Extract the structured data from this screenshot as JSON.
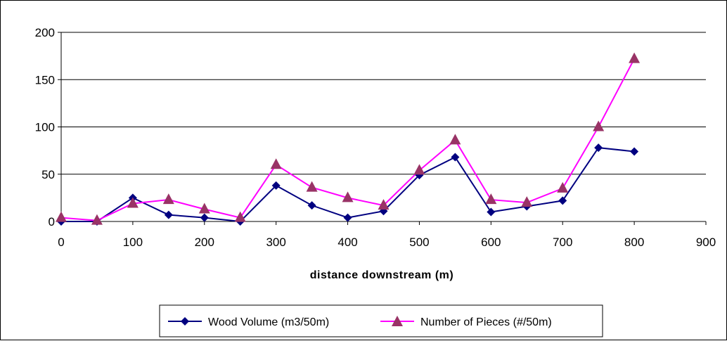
{
  "chart_data": {
    "type": "line",
    "title": "",
    "xlabel": "distance downstream (m)",
    "ylabel": "",
    "xlim": [
      0,
      900
    ],
    "ylim": [
      0,
      200
    ],
    "xticks": [
      0,
      100,
      200,
      300,
      400,
      500,
      600,
      700,
      800,
      900
    ],
    "yticks": [
      0,
      50,
      100,
      150,
      200
    ],
    "grid": "horizontal",
    "legend": "bottom",
    "x": [
      0,
      50,
      100,
      150,
      200,
      250,
      300,
      350,
      400,
      450,
      500,
      550,
      600,
      650,
      700,
      750,
      800
    ],
    "series": [
      {
        "name": "Wood Volume (m3/50m)",
        "color": "#000080",
        "marker": "diamond",
        "values": [
          0,
          0,
          25,
          7,
          4,
          0,
          38,
          17,
          4,
          11,
          49,
          68,
          10,
          16,
          22,
          78,
          74
        ]
      },
      {
        "name": "Number of Pieces (#/50m)",
        "color": "#ff00ff",
        "marker_color": "#993366",
        "marker": "triangle",
        "values": [
          4,
          1,
          19,
          23,
          13,
          4,
          60,
          36,
          25,
          17,
          54,
          86,
          23,
          20,
          35,
          100,
          172
        ]
      }
    ]
  }
}
